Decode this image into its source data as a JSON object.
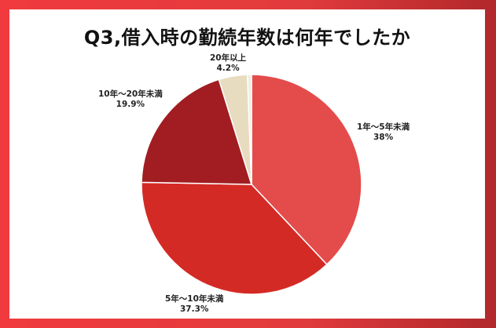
{
  "chart_data": {
    "type": "pie",
    "title": "Q3,借入時の勤続年数は何年でしたか",
    "slices": [
      {
        "label": "1年～5年未満",
        "value": 38,
        "display": "38%",
        "color": "#e44b4b"
      },
      {
        "label": "5年～10年未満",
        "value": 37.3,
        "display": "37.3%",
        "color": "#d42a25"
      },
      {
        "label": "10年～20年未満",
        "value": 19.9,
        "display": "19.9%",
        "color": "#a11d21"
      },
      {
        "label": "20年以上",
        "value": 4.2,
        "display": "4.2%",
        "color": "#e8dcc0"
      },
      {
        "label": "",
        "value": 0.6,
        "display": "",
        "color": "#f0ece0"
      }
    ],
    "legend": "none",
    "start_angle": "12 o'clock",
    "direction": "clockwise"
  }
}
